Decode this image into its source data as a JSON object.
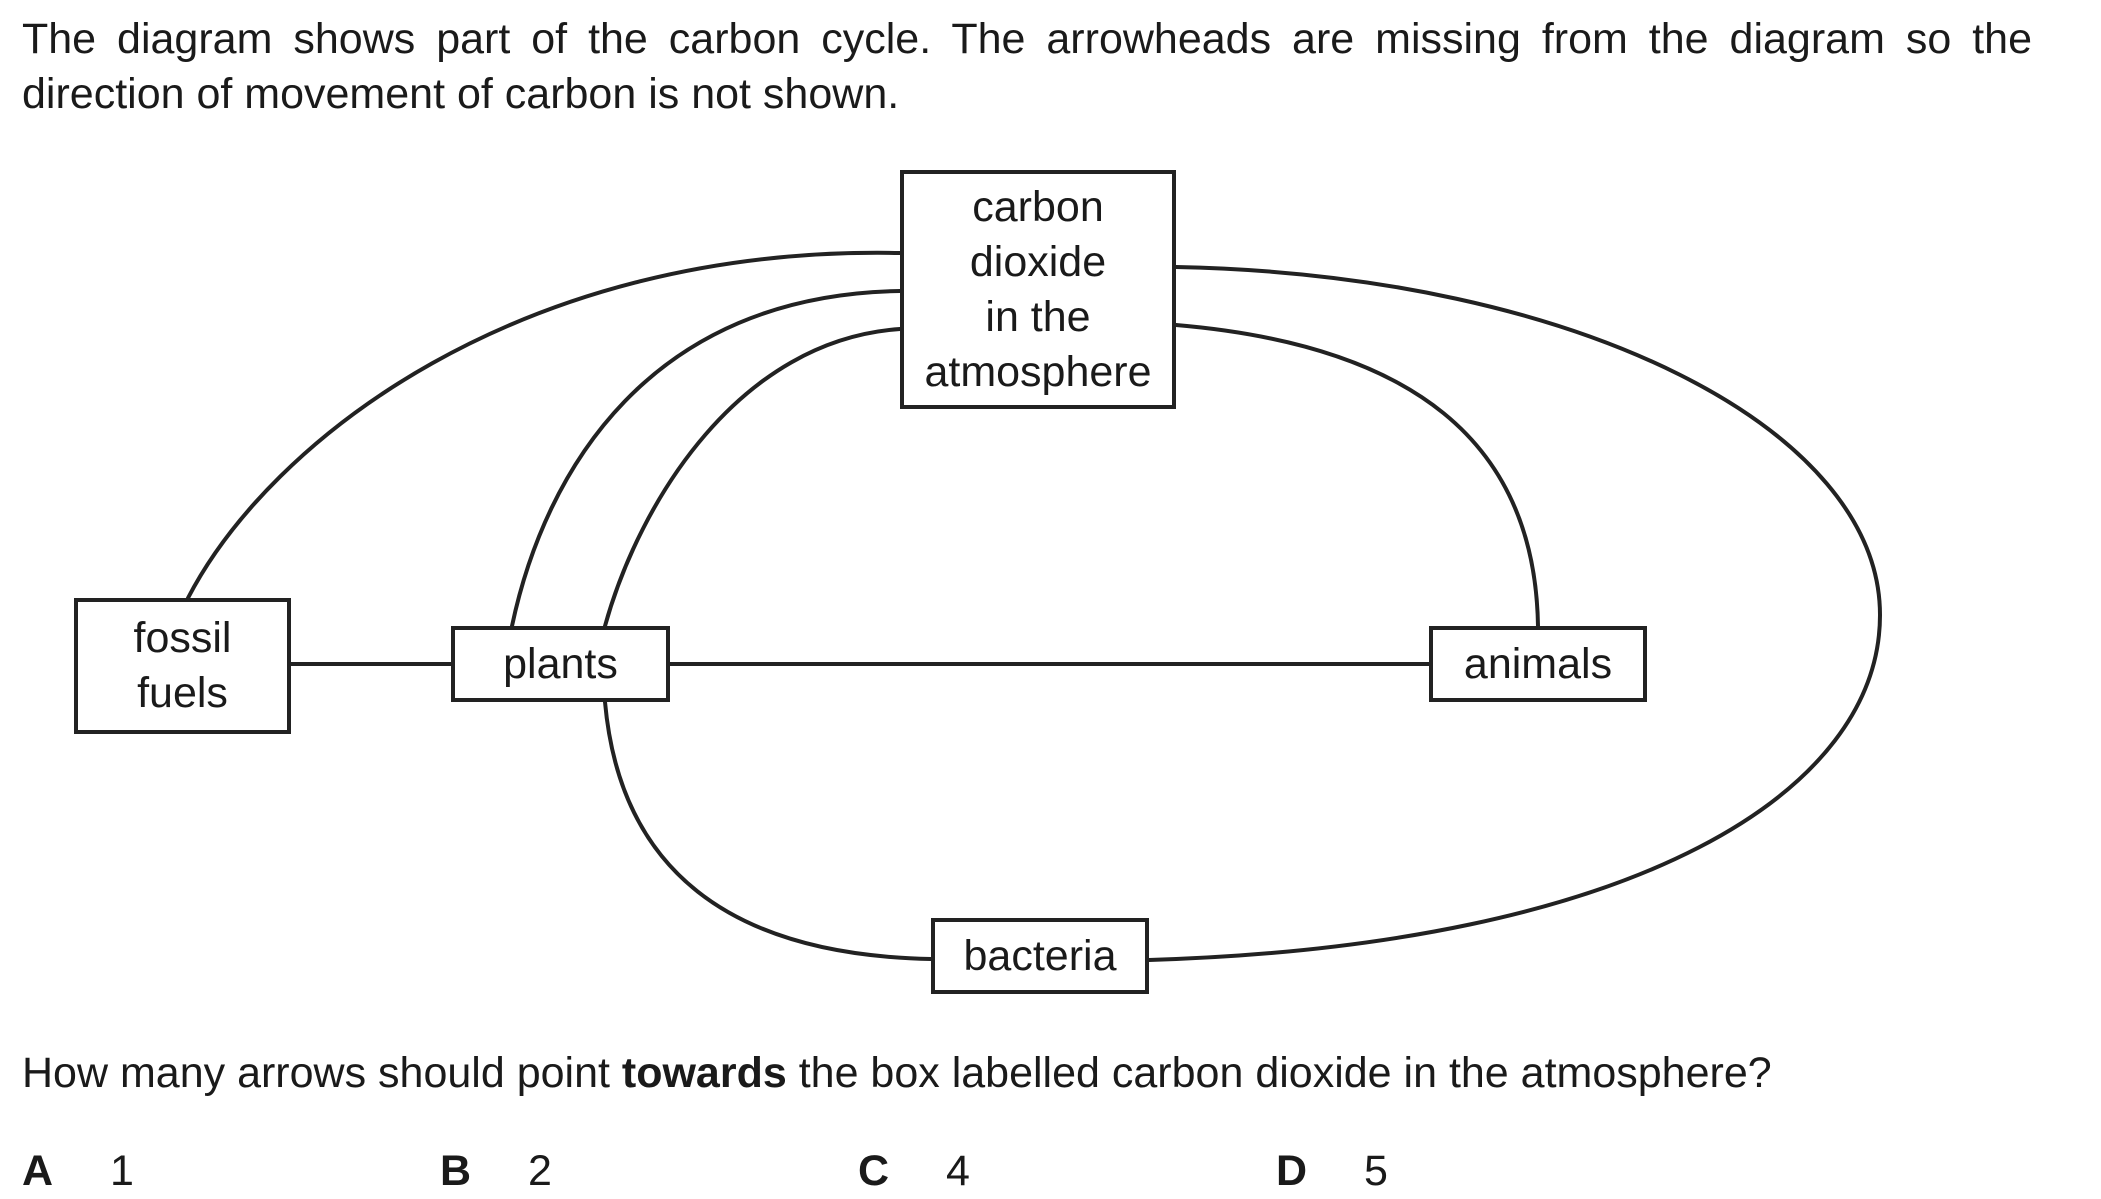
{
  "intro": {
    "text": "The diagram shows part of the carbon cycle. The arrowheads are missing from the diagram so the direction of movement of carbon is not shown."
  },
  "diagram": {
    "nodes": {
      "co2": [
        "carbon",
        "dioxide",
        "in the",
        "atmosphere"
      ],
      "fossil": [
        "fossil",
        "fuels"
      ],
      "plants": [
        "plants"
      ],
      "animals": [
        "animals"
      ],
      "bacteria": [
        "bacteria"
      ]
    },
    "connections": [
      {
        "from": "fossil fuels",
        "to": "carbon dioxide in the atmosphere"
      },
      {
        "from": "plants",
        "to": "carbon dioxide in the atmosphere"
      },
      {
        "from": "plants",
        "to": "carbon dioxide in the atmosphere"
      },
      {
        "from": "animals",
        "to": "carbon dioxide in the atmosphere"
      },
      {
        "from": "bacteria",
        "to": "carbon dioxide in the atmosphere"
      },
      {
        "from": "fossil fuels",
        "to": "plants"
      },
      {
        "from": "plants",
        "to": "animals"
      },
      {
        "from": "plants",
        "to": "bacteria"
      }
    ]
  },
  "question": {
    "before": "How many arrows should point ",
    "emphasis": "towards",
    "after": " the box labelled carbon dioxide in the atmosphere?"
  },
  "options": [
    {
      "letter": "A",
      "value": "1"
    },
    {
      "letter": "B",
      "value": "2"
    },
    {
      "letter": "C",
      "value": "4"
    },
    {
      "letter": "D",
      "value": "5"
    }
  ]
}
